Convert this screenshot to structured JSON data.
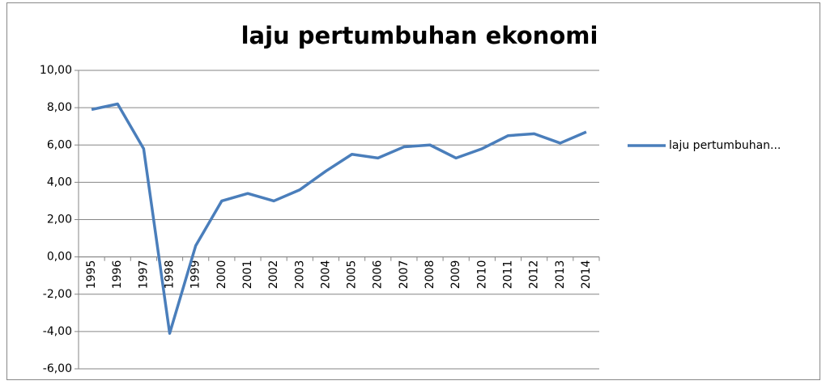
{
  "chart_data": {
    "type": "line",
    "title": "laju pertumbuhan ekonomi",
    "categories": [
      "1995",
      "1996",
      "1997",
      "1998",
      "1999",
      "2000",
      "2001",
      "2002",
      "2003",
      "2004",
      "2005",
      "2006",
      "2007",
      "2008",
      "2009",
      "2010",
      "2011",
      "2012",
      "2013",
      "2014"
    ],
    "series": [
      {
        "name": "laju pertumbuhan...",
        "color": "#4a7ebb",
        "values": [
          7.9,
          8.2,
          5.8,
          -4.1,
          0.6,
          3.0,
          3.4,
          3.0,
          3.6,
          4.6,
          5.5,
          5.3,
          5.9,
          6.0,
          5.3,
          5.8,
          6.5,
          6.6,
          6.1,
          6.7
        ]
      }
    ],
    "ylim": [
      -6,
      10
    ],
    "yticks": [
      {
        "value": -6,
        "label": "-6,00"
      },
      {
        "value": -4,
        "label": "-4,00"
      },
      {
        "value": -2,
        "label": "-2,00"
      },
      {
        "value": 0,
        "label": "0,00"
      },
      {
        "value": 2,
        "label": "2,00"
      },
      {
        "value": 4,
        "label": "4,00"
      },
      {
        "value": 6,
        "label": "6,00"
      },
      {
        "value": 8,
        "label": "8,00"
      },
      {
        "value": 10,
        "label": "10,00"
      }
    ],
    "grid": true,
    "legend": "right"
  }
}
